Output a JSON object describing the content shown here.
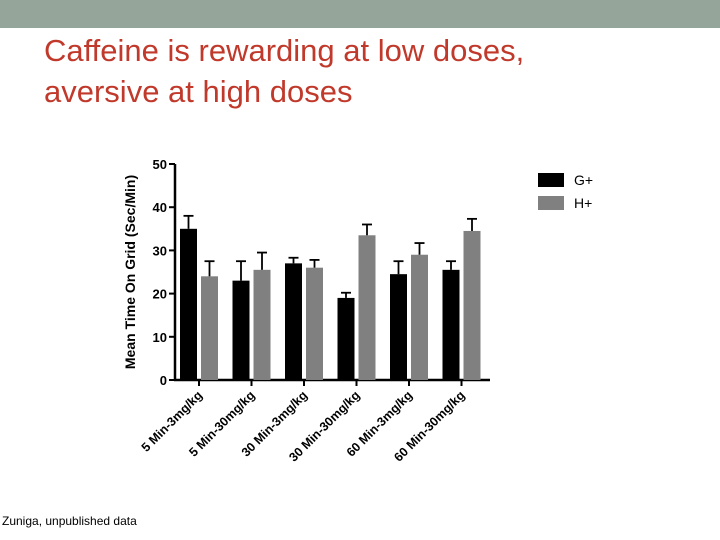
{
  "slide": {
    "title_line1": "Caffeine is rewarding at low doses,",
    "title_line2": "aversive at high doses",
    "source": "Zuniga, unpublished data",
    "band_color": "#96a59a",
    "title_color": "#c0392b"
  },
  "chart_data": {
    "type": "bar",
    "title": "",
    "xlabel": "",
    "ylabel": "Mean Time On Grid (Sec/Min)",
    "ylim": [
      0,
      50
    ],
    "yticks": [
      0,
      10,
      20,
      30,
      40,
      50
    ],
    "categories": [
      "5 Min-3mg/kg",
      "5 Min-30mg/kg",
      "30 Min-3mg/kg",
      "30 Min-30mg/kg",
      "60 Min-3mg/kg",
      "60 Min-30mg/kg"
    ],
    "series": [
      {
        "name": "G+",
        "color": "#000000",
        "values": [
          35,
          23,
          27,
          19,
          24.5,
          25.5
        ],
        "errors": [
          3,
          4.5,
          1.3,
          1.2,
          3,
          2
        ]
      },
      {
        "name": "H+",
        "color": "#808080",
        "values": [
          24,
          25.5,
          26,
          33.5,
          29,
          34.5
        ],
        "errors": [
          3.5,
          4,
          1.8,
          2.5,
          2.7,
          2.8
        ]
      }
    ],
    "legend_position": "right",
    "grid": false,
    "error_bars": true
  }
}
